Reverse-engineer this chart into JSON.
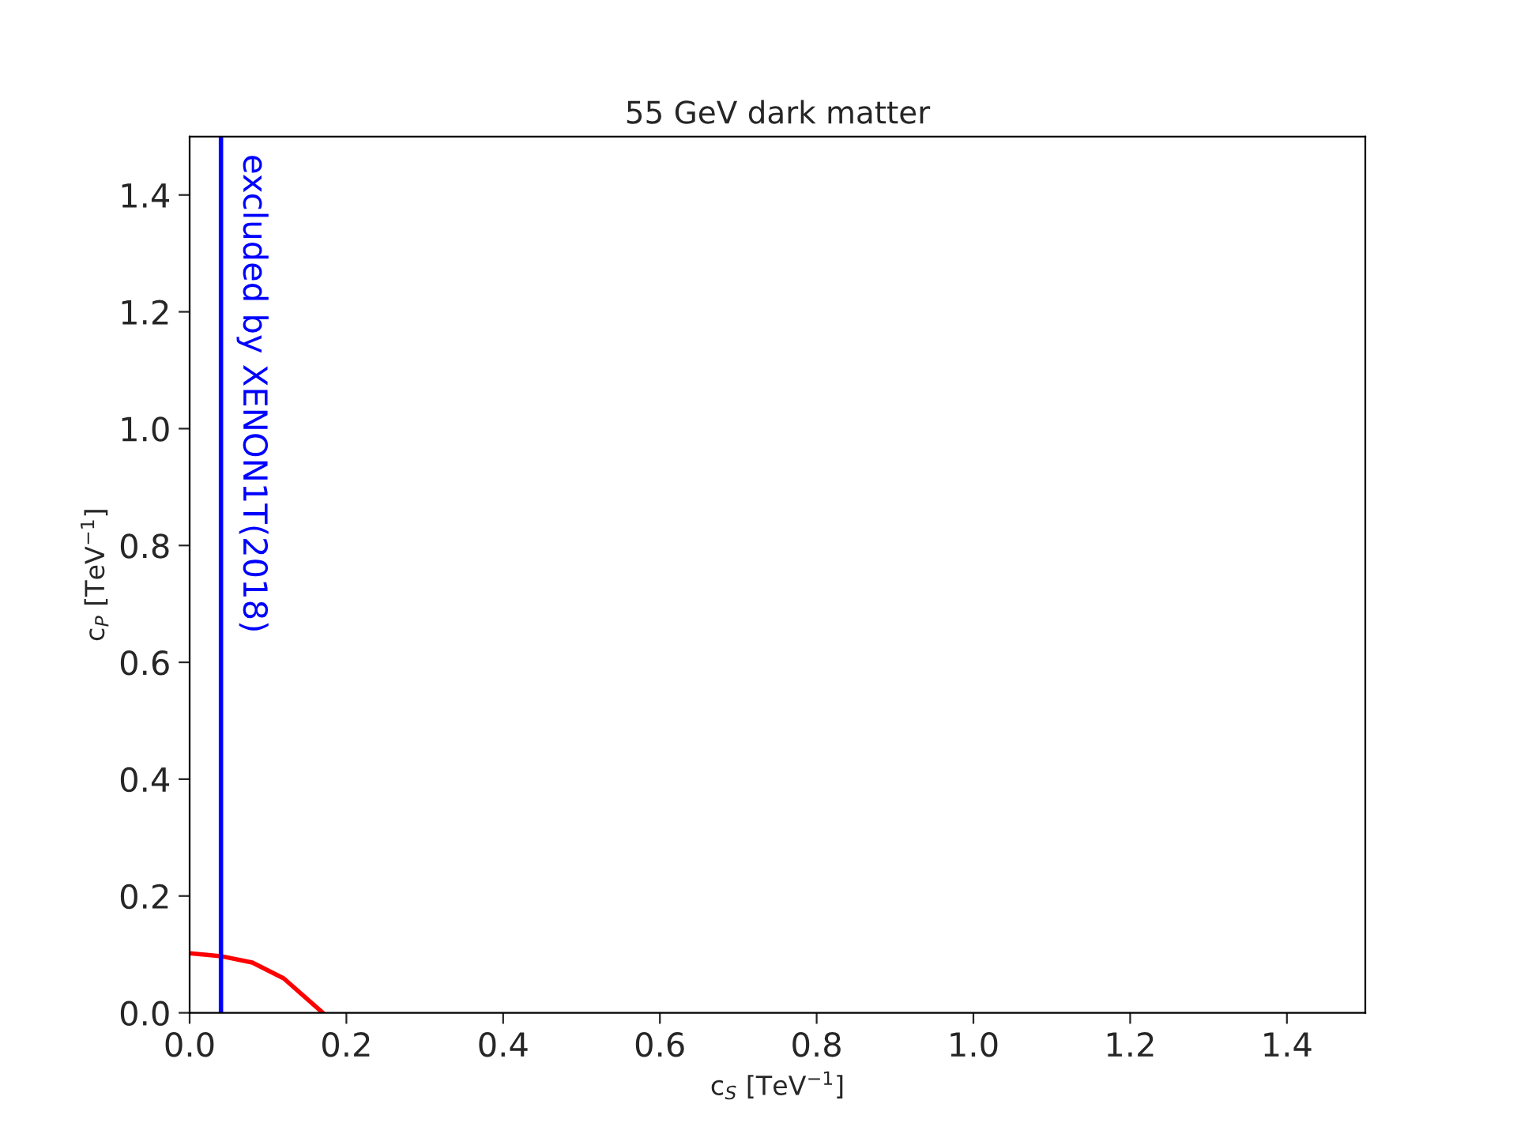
{
  "chart_data": {
    "type": "line",
    "title": "55 GeV dark matter",
    "xlabel": "c$_{S}$ [TeV$^{−1}$]",
    "ylabel": "c$_{P}$ [TeV$^{−1}$]",
    "series": [
      {
        "color": "#ff0000",
        "x": [
          0,
          0.04,
          0.08,
          0.12,
          0.17
        ],
        "values": [
          0.102,
          0.097,
          0.086,
          0.059,
          0
        ]
      }
    ],
    "ref_lines": [
      {
        "axis": "x",
        "value": 0.04,
        "label": "excluded by XENON1T(2018)",
        "color": "#0000ff"
      }
    ],
    "xlim": [
      0,
      1.5
    ],
    "ylim": [
      0,
      1.5
    ],
    "xticks": [
      {
        "value": 0,
        "label": "0.0"
      },
      {
        "value": 0.2,
        "label": "0.2"
      },
      {
        "value": 0.4,
        "label": "0.4"
      },
      {
        "value": 0.6,
        "label": "0.6"
      },
      {
        "value": 0.8,
        "label": "0.8"
      },
      {
        "value": 1.0,
        "label": "1.0"
      },
      {
        "value": 1.2,
        "label": "1.2"
      },
      {
        "value": 1.4,
        "label": "1.4"
      }
    ],
    "yticks": [
      {
        "value": 0,
        "label": "0.0"
      },
      {
        "value": 0.2,
        "label": "0.2"
      },
      {
        "value": 0.4,
        "label": "0.4"
      },
      {
        "value": 0.6,
        "label": "0.6"
      },
      {
        "value": 0.8,
        "label": "0.8"
      },
      {
        "value": 1.0,
        "label": "1.0"
      },
      {
        "value": 1.2,
        "label": "1.2"
      },
      {
        "value": 1.4,
        "label": "1.4"
      }
    ],
    "grid": false,
    "legend": false
  }
}
